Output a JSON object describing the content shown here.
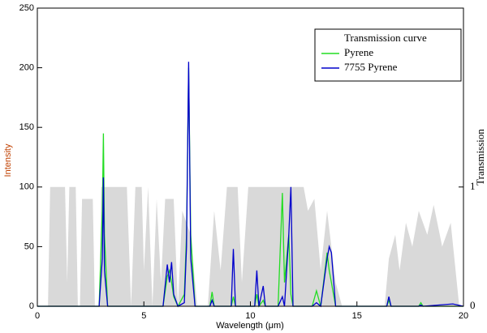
{
  "chart_data": {
    "type": "line",
    "xlabel": "Wavelength (μm)",
    "ylabel": "Intensity",
    "y2label": "Transmission",
    "xlim": [
      0,
      20
    ],
    "xticks": [
      0,
      5,
      10,
      15,
      20
    ],
    "ylim": [
      0,
      250
    ],
    "yticks": [
      0,
      50,
      100,
      150,
      200,
      250
    ],
    "y2lim": [
      0,
      2.5
    ],
    "y2ticks": [
      0,
      1
    ],
    "x": [
      0,
      2.9,
      3.05,
      3.1,
      3.15,
      3.3,
      5.9,
      6.1,
      6.2,
      6.3,
      6.4,
      6.6,
      6.9,
      7.0,
      7.1,
      7.2,
      7.4,
      8.1,
      8.2,
      8.3,
      9.1,
      9.2,
      9.3,
      10.2,
      10.3,
      10.4,
      10.6,
      10.7,
      11.3,
      11.5,
      11.6,
      11.8,
      11.9,
      12.0,
      12.9,
      13.1,
      13.3,
      13.6,
      13.7,
      13.8,
      14.0,
      16.4,
      16.5,
      16.6,
      17.9,
      18.0,
      18.1,
      19.5,
      20
    ],
    "series": [
      {
        "name": "Transmission curve",
        "color": "#d9d9d9",
        "axis": "y2",
        "x": [
          0.5,
          0.6,
          1.3,
          1.4,
          1.5,
          1.8,
          1.9,
          2.0,
          2.1,
          2.6,
          2.7,
          2.9,
          3.0,
          4.2,
          4.4,
          4.6,
          4.9,
          5.0,
          5.2,
          5.4,
          5.6,
          5.8,
          6.0,
          6.4,
          6.6,
          6.8,
          7.2,
          7.5,
          8.0,
          8.3,
          8.6,
          8.9,
          9.4,
          9.6,
          9.9,
          12.5,
          12.7,
          13.0,
          13.3,
          13.6,
          14.0,
          14.3,
          16.3,
          16.5,
          16.8,
          17.0,
          17.3,
          17.6,
          17.9,
          18.3,
          18.6,
          19.0,
          19.4,
          19.8,
          20
        ],
        "values": [
          0,
          1,
          1,
          0.2,
          1,
          1,
          0,
          0,
          0.9,
          0.9,
          0,
          0,
          1,
          1,
          0,
          1,
          1,
          0.3,
          1,
          0,
          0.9,
          0.2,
          0.9,
          0.9,
          0,
          0.8,
          0.6,
          0,
          0,
          0.8,
          0.3,
          1,
          1,
          0.2,
          1,
          1,
          0.8,
          0.9,
          0.3,
          0.8,
          0.2,
          0,
          0,
          0.4,
          0.6,
          0.3,
          0.7,
          0.5,
          0.8,
          0.6,
          0.85,
          0.5,
          0.7,
          0,
          0
        ]
      },
      {
        "name": "Pyrene",
        "color": "#22dd22",
        "values": [
          0,
          0,
          80,
          145,
          60,
          0,
          0,
          25,
          30,
          20,
          8,
          0,
          10,
          60,
          200,
          60,
          0,
          0,
          12,
          0,
          0,
          8,
          0,
          0,
          10,
          0,
          5,
          0,
          0,
          95,
          20,
          60,
          10,
          0,
          0,
          13,
          0,
          45,
          30,
          20,
          0,
          0,
          5,
          0,
          0,
          3,
          0,
          0,
          0
        ]
      },
      {
        "name": "7755 Pyrene",
        "color": "#0000cc",
        "values": [
          0,
          0,
          40,
          108,
          30,
          0,
          0,
          35,
          20,
          37,
          10,
          0,
          3,
          50,
          205,
          40,
          0,
          0,
          5,
          0,
          0,
          48,
          0,
          0,
          30,
          0,
          17,
          0,
          0,
          8,
          0,
          60,
          100,
          0,
          0,
          3,
          0,
          40,
          50,
          45,
          0,
          0,
          8,
          0,
          0,
          1,
          0,
          2,
          0
        ]
      }
    ]
  }
}
